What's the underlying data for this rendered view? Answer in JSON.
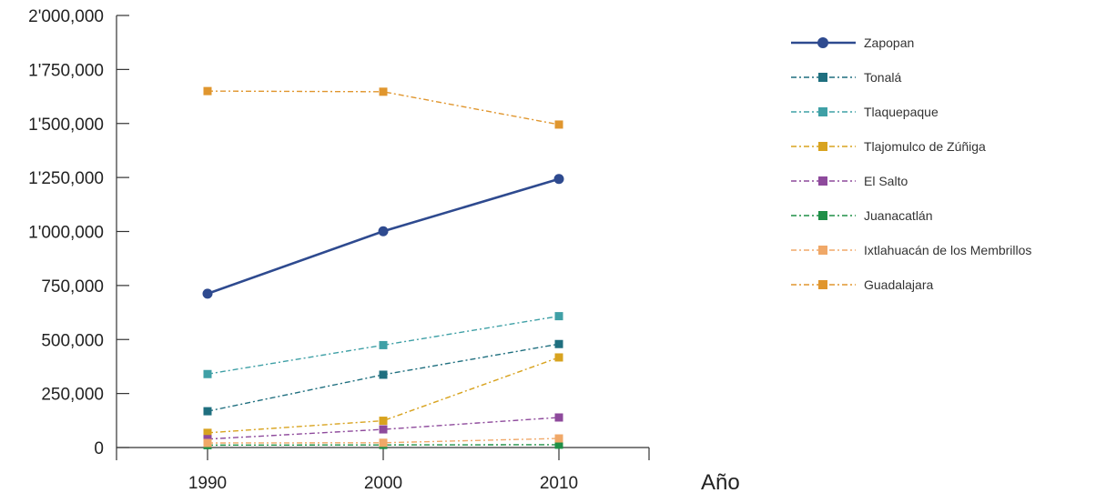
{
  "chart_data": {
    "type": "line",
    "xlabel": "Año",
    "ylabel": "",
    "title": "",
    "ylim": [
      0,
      2000000
    ],
    "yticks": [
      0,
      250000,
      500000,
      750000,
      1000000,
      1250000,
      1500000,
      1750000,
      2000000
    ],
    "ytick_labels": [
      "0",
      "250,000",
      "500,000",
      "750,000",
      "1'000,000",
      "1'250,000",
      "1'500,000",
      "1'750,000",
      "2'000,000"
    ],
    "x": [
      "1990",
      "2000",
      "2010"
    ],
    "legend_position": "right",
    "grid": false,
    "series": [
      {
        "name": "Zapopan",
        "color": "#2e4a8f",
        "marker": "circle",
        "dash": "solid",
        "values": [
          712000,
          1001000,
          1243000
        ]
      },
      {
        "name": "Tonalá",
        "color": "#1f6f7f",
        "marker": "square",
        "dash": "dashdot",
        "values": [
          168000,
          337000,
          479000
        ]
      },
      {
        "name": "Tlaquepaque",
        "color": "#3fa0a6",
        "marker": "square",
        "dash": "dashdot",
        "values": [
          340000,
          474000,
          608000
        ]
      },
      {
        "name": "Tlajomulco de Zúñiga",
        "color": "#d8a31f",
        "marker": "square",
        "dash": "dashdot",
        "values": [
          68000,
          124000,
          417000
        ]
      },
      {
        "name": "El Salto",
        "color": "#8e4a9c",
        "marker": "square",
        "dash": "dashdot",
        "values": [
          39000,
          84000,
          139000
        ]
      },
      {
        "name": "Juanacatlán",
        "color": "#1f8f47",
        "marker": "square",
        "dash": "dashdot",
        "values": [
          11000,
          12000,
          13000
        ]
      },
      {
        "name": "Ixtlahuacán de los Membrillos",
        "color": "#f0a868",
        "marker": "square",
        "dash": "dashdot",
        "values": [
          21000,
          22000,
          42000
        ]
      },
      {
        "name": "Guadalajara",
        "color": "#e0962e",
        "marker": "square",
        "dash": "dashdot",
        "values": [
          1650000,
          1647000,
          1495000
        ]
      }
    ]
  }
}
